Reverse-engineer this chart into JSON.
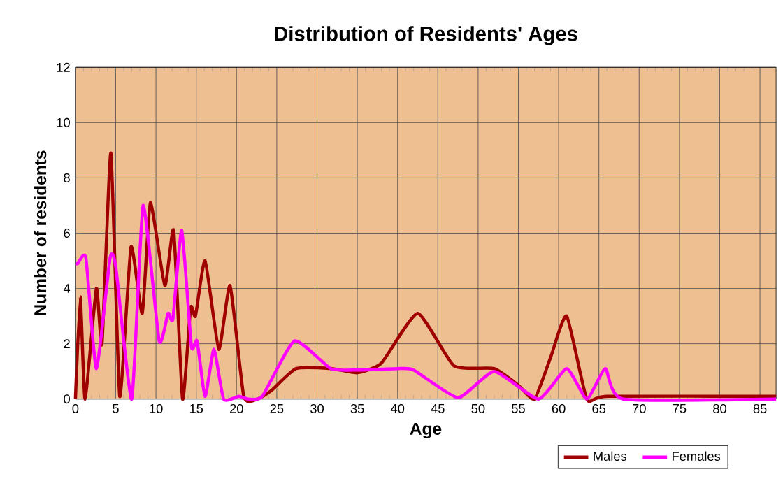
{
  "chart_data": {
    "type": "line",
    "title": "Distribution of Residents' Ages",
    "xlabel": "Age",
    "ylabel": "Number of residents",
    "xlim": [
      0,
      87
    ],
    "xticks": [
      0,
      5,
      10,
      15,
      20,
      25,
      30,
      35,
      40,
      45,
      50,
      55,
      60,
      65,
      70,
      75,
      80,
      85
    ],
    "ylim": [
      0,
      12
    ],
    "yticks": [
      0,
      2,
      4,
      6,
      8,
      10,
      12
    ],
    "grid": true,
    "legend": "bottom",
    "marker": "none",
    "line_style": "solid",
    "series": [
      {
        "name": "Males",
        "color": "#a00000",
        "x": [
          0,
          0.6,
          1.2,
          2.6,
          3.3,
          4.4,
          5.5,
          6.9,
          8.3,
          9.3,
          11.1,
          12.2,
          13.3,
          14.3,
          14.9,
          16.1,
          17.8,
          19.2,
          20.9,
          22.6,
          24.3,
          27.4,
          31.8,
          35,
          38,
          42.5,
          47,
          52,
          55,
          57,
          59,
          61,
          63.5,
          66,
          87
        ],
        "values": [
          0,
          3.7,
          0,
          4,
          2,
          8.9,
          0.1,
          5.5,
          3.1,
          7.1,
          4.1,
          6.1,
          0,
          3.3,
          3,
          5,
          1.8,
          4.1,
          0.1,
          0,
          0.3,
          1.1,
          1.1,
          0.95,
          1.3,
          3.1,
          1.2,
          1.1,
          0.5,
          0,
          1.5,
          3,
          0,
          0.1,
          0.1
        ]
      },
      {
        "name": "Females",
        "color": "#ff00ff",
        "x": [
          0,
          0.3,
          1.3,
          2.6,
          4.3,
          5,
          7,
          8.4,
          10.4,
          11.5,
          12.1,
          13.2,
          14.4,
          15.1,
          16.1,
          17.2,
          18.4,
          20.3,
          21.5,
          23.2,
          27.2,
          31.7,
          35,
          40,
          42,
          47.5,
          52,
          57.5,
          61,
          63.5,
          65.8,
          68,
          87
        ],
        "values": [
          4.9,
          4.9,
          5.1,
          1.1,
          5.1,
          4.8,
          0,
          7,
          2.1,
          3.1,
          2.9,
          6.1,
          1.9,
          2.1,
          0.1,
          1.8,
          0,
          0.1,
          0,
          0.1,
          2.1,
          1.1,
          1.05,
          1.1,
          1.05,
          0.05,
          1,
          0,
          1.1,
          0,
          1.1,
          0,
          0
        ]
      }
    ]
  }
}
